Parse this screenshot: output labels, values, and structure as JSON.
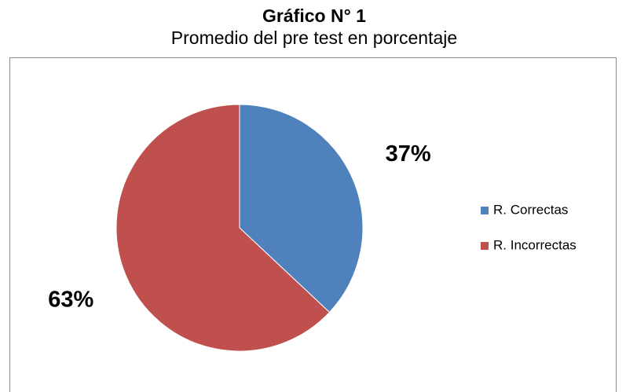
{
  "chart_data": {
    "type": "pie",
    "title": "Gráfico N° 1",
    "subtitle": "Promedio del pre test en porcentaje",
    "categories": [
      "R. Correctas",
      "R. Incorrectas"
    ],
    "values": [
      37,
      63
    ],
    "value_labels": [
      "37%",
      "63%"
    ],
    "colors": [
      "#4f81bd",
      "#c0504d"
    ],
    "legend": "right"
  }
}
